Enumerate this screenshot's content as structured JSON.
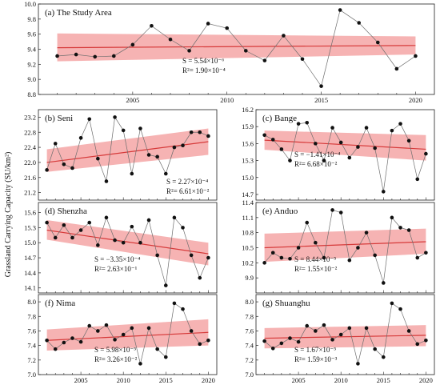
{
  "figure": {
    "ylabel": "Grassland Carrying Capacity (SU/km²)",
    "xticks": [
      2005,
      2010,
      2015,
      2020
    ],
    "colors": {
      "band": "#f4a6a6",
      "trend": "#d63a3a",
      "line": "#6e6e6e",
      "point": "#111111"
    }
  },
  "chart_data": [
    {
      "type": "line",
      "panel": "(a)",
      "name": "The Study Area",
      "x": [
        2001,
        2002,
        2003,
        2004,
        2005,
        2006,
        2007,
        2008,
        2009,
        2010,
        2011,
        2012,
        2013,
        2014,
        2015,
        2016,
        2017,
        2018,
        2019,
        2020
      ],
      "values": [
        9.31,
        9.33,
        9.3,
        9.31,
        9.46,
        9.71,
        9.53,
        9.38,
        9.74,
        9.68,
        9.38,
        9.25,
        9.58,
        9.27,
        8.91,
        9.92,
        9.75,
        9.49,
        9.14,
        9.31
      ],
      "trend": [
        9.42,
        9.45
      ],
      "band_lower": [
        9.24,
        9.33
      ],
      "band_upper": [
        9.61,
        9.57
      ],
      "ylim": [
        8.8,
        10.0
      ],
      "yticks": [
        "8.8",
        "9.0",
        "9.2",
        "9.4",
        "9.6",
        "9.8",
        "10.0"
      ],
      "xlim": [
        2000,
        2021
      ],
      "stats": {
        "s": "S  = 5.54×10⁻⁶",
        "r2": "R²= 1.90×10⁻⁴"
      }
    },
    {
      "type": "line",
      "panel": "(b)",
      "name": "Seni",
      "x": [
        2001,
        2002,
        2003,
        2004,
        2005,
        2006,
        2007,
        2008,
        2009,
        2010,
        2011,
        2012,
        2013,
        2014,
        2015,
        2016,
        2017,
        2018,
        2019,
        2020
      ],
      "values": [
        21.8,
        22.5,
        21.95,
        21.85,
        22.65,
        23.15,
        22.1,
        21.5,
        23.2,
        22.85,
        21.7,
        22.9,
        22.2,
        22.15,
        21.7,
        22.4,
        22.45,
        22.8,
        22.8,
        22.7
      ],
      "trend": [
        22.0,
        22.55
      ],
      "band_lower": [
        21.75,
        22.2
      ],
      "band_upper": [
        22.35,
        22.9
      ],
      "ylim": [
        21.0,
        23.4
      ],
      "yticks": [
        "21.2",
        "21.6",
        "22.0",
        "22.4",
        "22.8",
        "23.2"
      ],
      "xlim": [
        2000,
        2021
      ],
      "stats": {
        "s": "S  = 2.27×10⁻⁴",
        "r2": "R²= 6.61×10⁻²"
      }
    },
    {
      "type": "line",
      "panel": "(c)",
      "name": "Bange",
      "x": [
        2001,
        2002,
        2003,
        2004,
        2005,
        2006,
        2007,
        2008,
        2009,
        2010,
        2011,
        2012,
        2013,
        2014,
        2015,
        2016,
        2017,
        2018,
        2019,
        2020
      ],
      "values": [
        15.75,
        15.67,
        15.5,
        15.3,
        15.95,
        15.97,
        15.6,
        15.3,
        15.88,
        15.62,
        15.35,
        15.54,
        15.88,
        15.52,
        14.75,
        15.83,
        15.95,
        15.65,
        14.97,
        15.42
      ],
      "trend": [
        15.66,
        15.5
      ],
      "band_lower": [
        15.49,
        15.3
      ],
      "band_upper": [
        15.83,
        15.75
      ],
      "ylim": [
        14.6,
        16.2
      ],
      "yticks": [
        "14.7",
        "15.0",
        "15.3",
        "15.6",
        "15.9",
        "16.2"
      ],
      "xlim": [
        2000,
        2021
      ],
      "stats": {
        "s": "S  = −1.41×10⁻⁴",
        "r2": "R²= 6.68×10⁻²"
      }
    },
    {
      "type": "line",
      "panel": "(d)",
      "name": "Shenzha",
      "x": [
        2001,
        2002,
        2003,
        2004,
        2005,
        2006,
        2007,
        2008,
        2009,
        2010,
        2011,
        2012,
        2013,
        2014,
        2015,
        2016,
        2017,
        2018,
        2019,
        2020
      ],
      "values": [
        15.4,
        15.1,
        15.35,
        15.1,
        15.25,
        15.4,
        14.95,
        15.5,
        15.05,
        15.0,
        15.32,
        15.0,
        15.45,
        14.75,
        14.15,
        15.5,
        15.3,
        14.75,
        14.3,
        14.7
      ],
      "trend": [
        15.25,
        14.78
      ],
      "band_lower": [
        15.06,
        14.55
      ],
      "band_upper": [
        15.45,
        15.0
      ],
      "ylim": [
        14.0,
        15.8
      ],
      "yticks": [
        "14.1",
        "14.4",
        "14.7",
        "15.0",
        "15.3",
        "15.6"
      ],
      "xlim": [
        2000,
        2021
      ],
      "stats": {
        "s": "S  = −3.35×10⁻⁴",
        "r2": "R²= 2.63×10⁻¹"
      }
    },
    {
      "type": "line",
      "panel": "(e)",
      "name": "Anduo",
      "x": [
        2001,
        2002,
        2003,
        2004,
        2005,
        2006,
        2007,
        2008,
        2009,
        2010,
        2011,
        2012,
        2013,
        2014,
        2015,
        2016,
        2017,
        2018,
        2019,
        2020
      ],
      "values": [
        10.2,
        10.4,
        10.3,
        10.28,
        10.5,
        11.0,
        10.6,
        10.3,
        11.25,
        11.2,
        10.25,
        10.5,
        10.8,
        10.35,
        9.8,
        11.1,
        10.9,
        10.85,
        10.3,
        10.4
      ],
      "trend": [
        10.5,
        10.62
      ],
      "band_lower": [
        10.22,
        10.38
      ],
      "band_upper": [
        10.78,
        10.88
      ],
      "ylim": [
        9.6,
        11.4
      ],
      "yticks": [
        "9.9",
        "10.2",
        "10.5",
        "10.8",
        "11.1",
        "11.4"
      ],
      "xlim": [
        2000,
        2021
      ],
      "stats": {
        "s": "S  = 8.44×10⁻⁵",
        "r2": "R²= 1.55×10⁻²"
      }
    },
    {
      "type": "line",
      "panel": "(f)",
      "name": "Nima",
      "x": [
        2001,
        2002,
        2003,
        2004,
        2005,
        2006,
        2007,
        2008,
        2009,
        2010,
        2011,
        2012,
        2013,
        2014,
        2015,
        2016,
        2017,
        2018,
        2019,
        2020
      ],
      "values": [
        7.47,
        7.35,
        7.44,
        7.5,
        7.45,
        7.67,
        7.6,
        7.68,
        7.48,
        7.55,
        7.64,
        7.15,
        7.64,
        7.35,
        7.24,
        7.98,
        7.9,
        7.6,
        7.42,
        7.47
      ],
      "trend": [
        7.47,
        7.58
      ],
      "band_lower": [
        7.33,
        7.4
      ],
      "band_upper": [
        7.62,
        7.76
      ],
      "ylim": [
        7.0,
        8.1
      ],
      "yticks": [
        "7.0",
        "7.2",
        "7.4",
        "7.6",
        "7.8",
        "8.0"
      ],
      "xlim": [
        2000,
        2021
      ],
      "stats": {
        "s": "S  = 5.98×10⁻⁵",
        "r2": "R²= 3.26×10⁻²"
      }
    },
    {
      "type": "line",
      "panel": "(g)",
      "name": "Shuanghu",
      "x": [
        2001,
        2002,
        2003,
        2004,
        2005,
        2006,
        2007,
        2008,
        2009,
        2010,
        2011,
        2012,
        2013,
        2014,
        2015,
        2016,
        2017,
        2018,
        2019,
        2020
      ],
      "values": [
        7.46,
        7.36,
        7.43,
        7.5,
        7.45,
        7.67,
        7.6,
        7.68,
        7.48,
        7.55,
        7.64,
        7.15,
        7.64,
        7.35,
        7.24,
        7.98,
        7.9,
        7.6,
        7.42,
        7.47
      ],
      "trend": [
        7.5,
        7.54
      ],
      "band_lower": [
        7.36,
        7.39
      ],
      "band_upper": [
        7.64,
        7.68
      ],
      "ylim": [
        7.0,
        8.1
      ],
      "yticks": [
        "7.0",
        "7.2",
        "7.4",
        "7.6",
        "7.8",
        "8.0"
      ],
      "xlim": [
        2000,
        2021
      ],
      "stats": {
        "s": "S  = 1.67×10⁻⁵",
        "r2": "R²= 1.59×10⁻³"
      }
    }
  ]
}
